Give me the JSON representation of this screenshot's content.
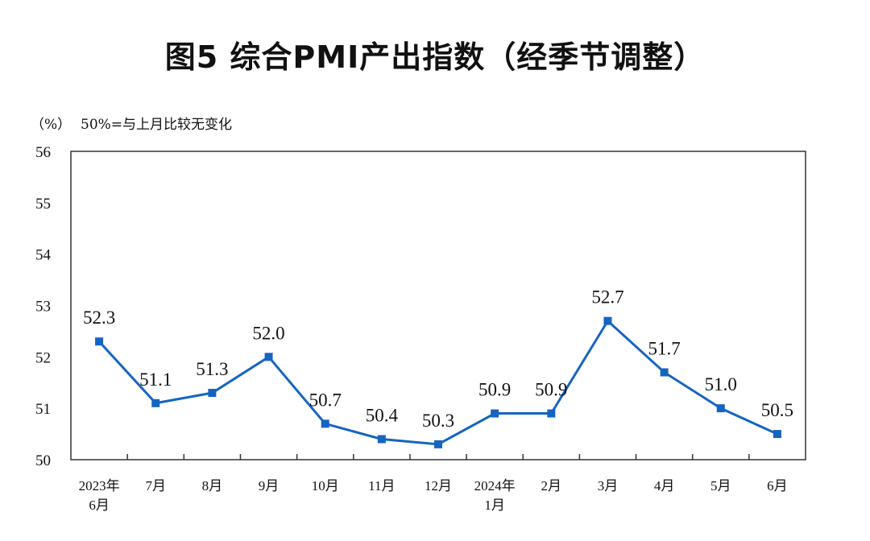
{
  "chart_data": {
    "type": "line",
    "title": "图5  综合PMI产出指数（经季节调整）",
    "ylabel": "（%）",
    "annotation": "50%=与上月比较无变化",
    "categories": [
      [
        "2023年",
        "6月"
      ],
      [
        "7月"
      ],
      [
        "8月"
      ],
      [
        "9月"
      ],
      [
        "10月"
      ],
      [
        "11月"
      ],
      [
        "12月"
      ],
      [
        "2024年",
        "1月"
      ],
      [
        "2月"
      ],
      [
        "3月"
      ],
      [
        "4月"
      ],
      [
        "5月"
      ],
      [
        "6月"
      ]
    ],
    "series": [
      {
        "name": "综合PMI产出指数",
        "values": [
          52.3,
          51.1,
          51.3,
          52.0,
          50.7,
          50.4,
          50.3,
          50.9,
          50.9,
          52.7,
          51.7,
          51.0,
          50.5
        ],
        "color": "#1565c0"
      }
    ],
    "data_labels": [
      "52.3",
      "51.1",
      "51.3",
      "52.0",
      "50.7",
      "50.4",
      "50.3",
      "50.9",
      "50.9",
      "52.7",
      "51.7",
      "51.0",
      "50.5"
    ],
    "yticks": [
      "50",
      "51",
      "52",
      "53",
      "54",
      "55",
      "56"
    ],
    "ylim": [
      50,
      56
    ],
    "grid": false,
    "legend": "none"
  }
}
